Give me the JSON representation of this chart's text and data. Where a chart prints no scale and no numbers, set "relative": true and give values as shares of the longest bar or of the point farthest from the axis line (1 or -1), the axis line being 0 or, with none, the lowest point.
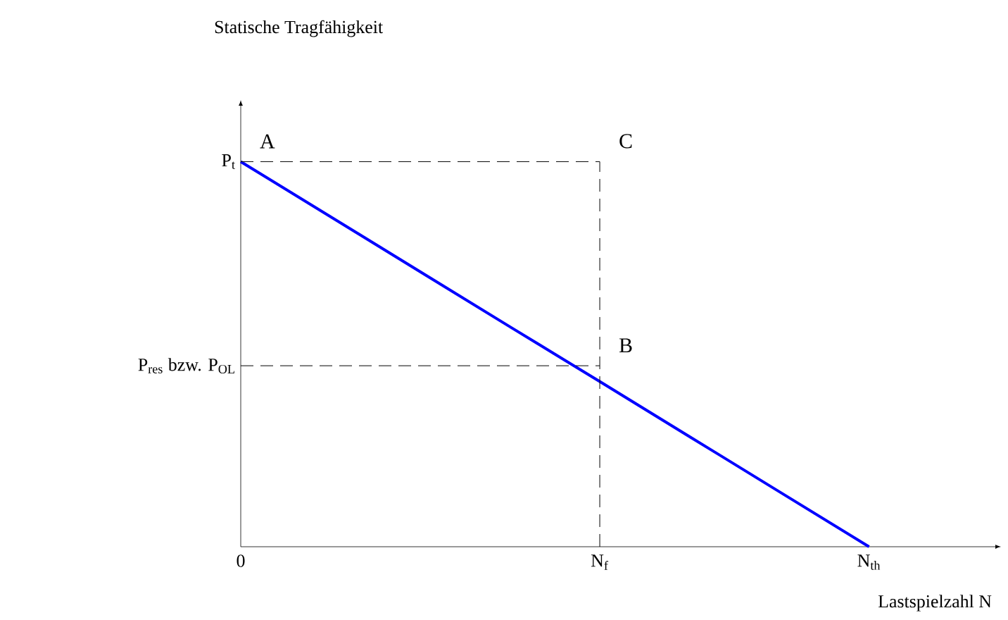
{
  "chart_data": {
    "type": "line",
    "relative": true,
    "xlabel": "Lastspielzahl N",
    "categories": [
      "0",
      null,
      null,
      null,
      "N$_{f}$",
      null,
      null,
      "N$_{th}$"
    ],
    "series": [
      {
        "color": "#0000ff",
        "values": [
          1,
          0.857,
          0.714,
          0.571,
          0.429,
          0.286,
          0.143,
          0
        ]
      }
    ],
    "ref_lines": [
      {
        "axis": "y",
        "value": 1,
        "label": "P$_{t}$",
        "color": "#000000",
        "line_style": "dashed"
      },
      {
        "axis": "y",
        "value": 0.47,
        "label": "P$_{res}$ bzw. P$_{OL}$",
        "color": "#000000",
        "line_style": "dashed"
      },
      {
        "axis": "x",
        "value": "N$_{f}$",
        "color": "#000000",
        "line_style": "dashed"
      }
    ],
    "annotations": [
      "Statische Tragfähigkeit",
      {
        "text": "A",
        "x": "0",
        "y": 1
      },
      {
        "text": "C",
        "x": "N$_{f}$",
        "y": 1
      },
      {
        "text": "B",
        "x": "N$_{f}$",
        "y": 0.47
      }
    ]
  }
}
